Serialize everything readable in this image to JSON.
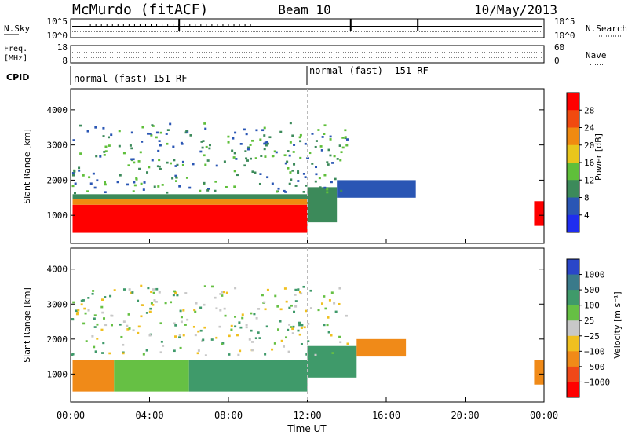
{
  "header": {
    "site": "McMurdo (fitACF)",
    "beam": "Beam 10",
    "date": "10/May/2013"
  },
  "noise_panel": {
    "left_label": "N.Sky",
    "left_ticks": [
      "10^5",
      "10^0"
    ],
    "right_label": "N.Search",
    "right_ticks": [
      "10^5",
      "10^0"
    ]
  },
  "freq_panel": {
    "left_label_1": "Freq.",
    "left_label_2": "[MHz]",
    "left_ticks": [
      "18",
      "8"
    ],
    "right_label": "Nave",
    "right_ticks": [
      "60",
      "0"
    ]
  },
  "cpid": {
    "label": "CPID",
    "segments": [
      {
        "text": "normal (fast) 151 RF",
        "start_hour": 0
      },
      {
        "text": "normal (fast) -151 RF",
        "start_hour": 12
      }
    ]
  },
  "chart_data": [
    {
      "type": "heatmap",
      "name": "power",
      "ylabel": "Slant Range [km]",
      "xlabel": "",
      "ylim": [
        200,
        4600
      ],
      "yticks": [
        "1000",
        "2000",
        "3000",
        "4000"
      ],
      "xlim": [
        0,
        24
      ],
      "colorbar_label": "Power [dB]",
      "colorbar_ticks": [
        "4",
        "8",
        "12",
        "16",
        "20",
        "24",
        "28"
      ],
      "colorbar_colors": [
        "#1f2df0",
        "#2a56b4",
        "#3c8a5a",
        "#5fbf3a",
        "#e8c61c",
        "#f08a10",
        "#f04a10",
        "#ff0000"
      ]
    },
    {
      "type": "heatmap",
      "name": "velocity",
      "ylabel": "Slant Range [km]",
      "xlabel": "Time UT",
      "ylim": [
        200,
        4600
      ],
      "yticks": [
        "1000",
        "2000",
        "3000",
        "4000"
      ],
      "xlim": [
        0,
        24
      ],
      "xticks": [
        "00:00",
        "04:00",
        "08:00",
        "12:00",
        "16:00",
        "20:00",
        "00:00"
      ],
      "colorbar_label": "Velocity [m s⁻¹]",
      "colorbar_ticks": [
        "1000",
        "500",
        "100",
        "25",
        "−25",
        "−100",
        "−500",
        "−1000"
      ],
      "colorbar_colors": [
        "#2a46c8",
        "#3a7a8a",
        "#3f9a6a",
        "#66c044",
        "#c8c8c8",
        "#f0c020",
        "#f08a18",
        "#f04818",
        "#ff0000"
      ]
    }
  ]
}
